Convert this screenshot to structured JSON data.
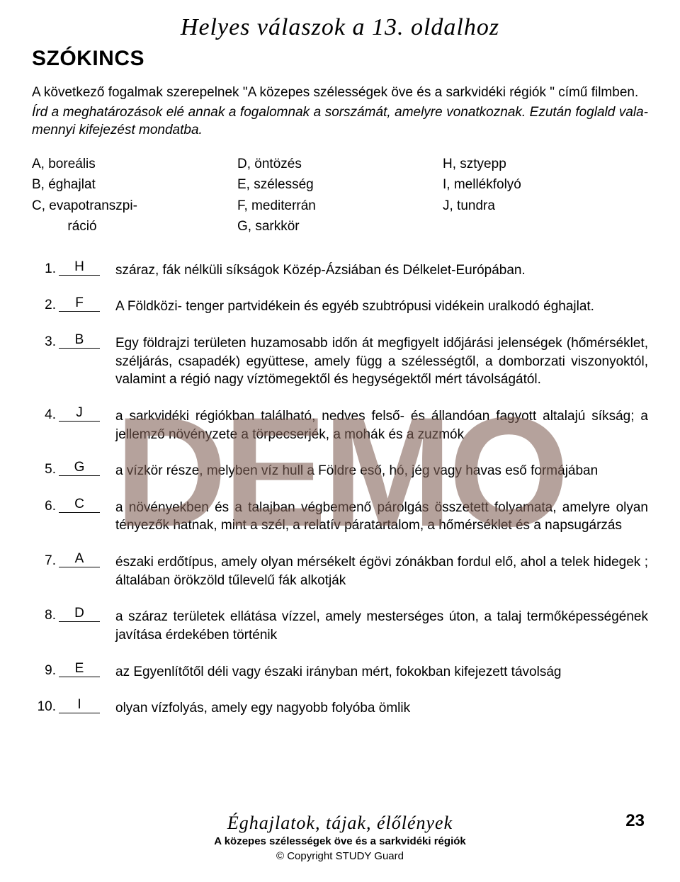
{
  "title": "Helyes válaszok a 13. oldalhoz",
  "section": "SZÓKINCS",
  "intro_line1": "A következő fogalmak szerepelnek  \"A közepes szélességek öve és a sarkvidéki régiók \" című filmben.",
  "intro_line2": "Írd a meghatározások elé annak a fogalomnak a sorszámát, amelyre vonatkoznak. Ezután foglald vala­mennyi kifejezést mondatba.",
  "terms": {
    "col1": [
      "A, boreális",
      "B, éghajlat",
      "C, evapotranszpi-",
      "     ráció"
    ],
    "col2": [
      "D, öntözés",
      "E, szélesség",
      "F, mediterrán",
      "G, sarkkör"
    ],
    "col3": [
      "H, sztyepp",
      "I, mellékfolyó",
      "J, tundra",
      ""
    ]
  },
  "questions": [
    {
      "n": "1.",
      "ans": "H",
      "text": "száraz, fák nélküli síkságok Közép-Ázsiában és Délkelet-Európában."
    },
    {
      "n": "2.",
      "ans": "F",
      "text": "A Földközi- tenger partvidékein és egyéb szubtrópusi vidékein uralkodó éghajlat."
    },
    {
      "n": "3.",
      "ans": "B",
      "text": "Egy földrajzi területen huzamosabb időn át megfigyelt időjárási jelenségek  (hőmérséklet, széljárás, csapadék) együttese, amely függ a szélességtől, a domborzati viszonyoktól, valamint a régió nagy víztömegektől és hegységektől mért távolságától."
    },
    {
      "n": "4.",
      "ans": "J",
      "text": "a sarkvidéki régiókban található, nedves felső- és állandóan fagyott altalajú síkság; a jellemző növényzete a  törpecserjék, a mohák és a zuzmók"
    },
    {
      "n": "5.",
      "ans": "G",
      "text": "a vízkör része, melyben víz hull a Földre eső, hó, jég vagy havas eső formájában"
    },
    {
      "n": "6.",
      "ans": "C",
      "text": "a növényekben és a talajban végbemenő párolgás összetett folyamata, amelyre olyan tényezők hatnak, mint a szél, a relatív páratartalom, a hőmérséklet és a napsugárzás"
    },
    {
      "n": "7.",
      "ans": "A",
      "text": "északi erdőtípus, amely olyan mérsékelt égövi zónákban fordul elő, ahol a telek hidegek ; általában örökzöld tűlevelű fák alkotják"
    },
    {
      "n": "8.",
      "ans": "D",
      "text": "a száraz területek ellátása vízzel, amely mesterséges úton, a talaj termőképességének javítása érdekében történik"
    },
    {
      "n": "9.",
      "ans": "E",
      "text": "az Egyenlítőtől  déli vagy északi irányban mért, fokokban kifejezett távolság"
    },
    {
      "n": "10.",
      "ans": "I",
      "text": "olyan vízfolyás, amely egy nagyobb folyóba ömlik"
    }
  ],
  "watermark": "DEMO",
  "footer": {
    "title": "Éghajlatok, tájak, élőlények",
    "subtitle": "A közepes szélességek öve és a sarkvidéki régiók",
    "copyright": "© Copyright STUDY Guard"
  },
  "page_number": "23",
  "colors": {
    "text": "#000000",
    "watermark": "#806055",
    "background": "#ffffff"
  },
  "fonts": {
    "body_pt": 19,
    "title_pt": 34,
    "section_pt": 30,
    "watermark_pt": 220
  }
}
